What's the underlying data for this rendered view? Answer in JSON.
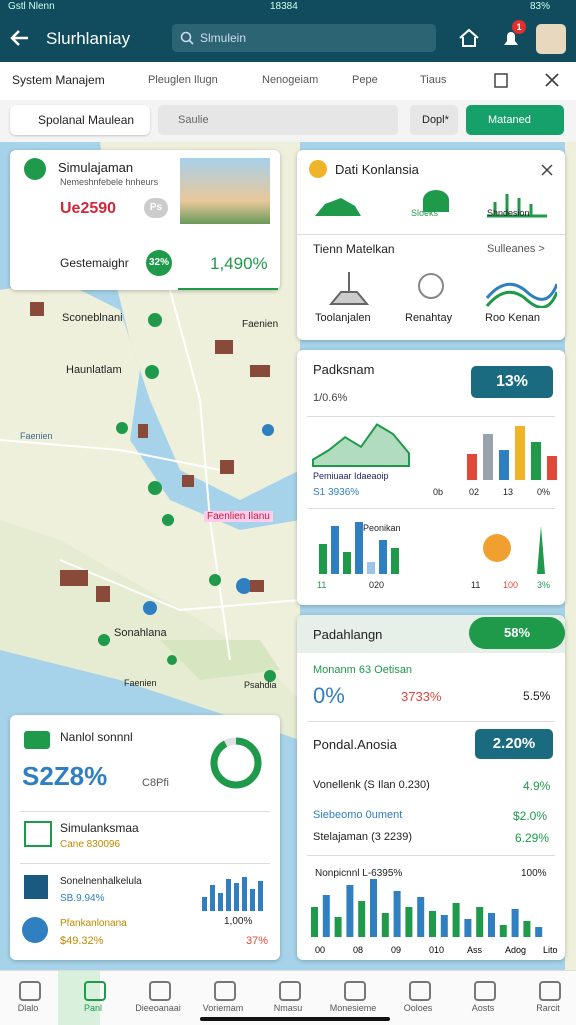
{
  "status_bar": {
    "carrier": "Gstl Nlenn",
    "time": "18384",
    "battery": "83%"
  },
  "app_bar": {
    "title": "Slurhlaniay",
    "search": "Slmulein",
    "notification_count": "1"
  },
  "tabs": [
    "System Manajem",
    "Pleuglen Ilugn",
    "Nenogeiam",
    "Pepe",
    "Tiaus"
  ],
  "toolbar": {
    "filter": "Spolanal Maulean",
    "search": "Saulie",
    "dropdown": "Dopl*",
    "action": "Mataned"
  },
  "map_labels": [
    "Sconeblnani",
    "Haunlatlam",
    "Faenien",
    "Faenien",
    "Faenlien Ilanu",
    "Sonahlana",
    "Faenien",
    "Psahdia"
  ],
  "card_overview": {
    "title": "Simulajaman",
    "subtitle": "Nemeshnfebele hnheurs",
    "amount": "Ue2590",
    "badge": "Ps",
    "item": "Gestemaighr",
    "item_badge": "32%",
    "value": "1,490%"
  },
  "card_data": {
    "title": "Dati Konlansia",
    "icons": [
      "Sloeks",
      "Shndesion"
    ],
    "section": "Tienn Matelkan",
    "more": "Sulleanes >",
    "items": [
      "Toolanjalen",
      "Renahtay",
      "Roo Kenan"
    ]
  },
  "card_stats": {
    "title": "Padksnam",
    "subtitle": "1/0.6%",
    "badge": "13%",
    "area_a": [
      4,
      10,
      18,
      12,
      26,
      20,
      8
    ],
    "area_color": "#1f9a4a",
    "chart_a_label": "Pemiuaar Idaeaoip",
    "chart_a_value": "S1 3936%",
    "bars_a": [
      26,
      46,
      30,
      54,
      38,
      24
    ],
    "bars_a_colors": [
      "#e0483a",
      "#9aa3ad",
      "#2f7fc1",
      "#f0b429",
      "#1f9a4a",
      "#e0483a"
    ],
    "axis_a": [
      "0b",
      "02",
      "13",
      "0%"
    ],
    "chart_b_label": "Peonikan",
    "bars_b": [
      30,
      48,
      22,
      52,
      12,
      34,
      26
    ],
    "bars_b_colors": [
      "#1f9a4a",
      "#2f7fc1",
      "#1f9a4a",
      "#2f7fc1",
      "#9bc4e6",
      "#2f7fc1",
      "#1f9a4a"
    ],
    "axis_b": [
      "11",
      "020",
      "11",
      "100",
      "3%"
    ]
  },
  "card_summary": {
    "title": "Padahlangn",
    "badge": "58%",
    "row_label": "Monanm 63 Oetisan",
    "metric_1": "0%",
    "metric_2": "3733%",
    "metric_3": "5.5%",
    "subtitle": "Pondal.Anosia",
    "subtitle_badge": "2.20%",
    "rows": [
      {
        "label": "Vonellenk (S Ilan 0.230)",
        "value": "4.9%"
      },
      {
        "label": "Siebeomo 0ument",
        "value": "$2.0%"
      },
      {
        "label": "Stelajaman (3 2239)",
        "value": "6.29%"
      }
    ],
    "chart_label": "Nonpicnnl L-6395%",
    "chart_max": "100%",
    "bars": [
      30,
      42,
      20,
      52,
      36,
      58,
      24,
      46,
      30,
      40,
      26,
      22,
      34,
      18,
      30,
      24,
      12,
      28,
      16,
      10
    ],
    "bar_colors": [
      "#1f9a4a",
      "#2f7fc1"
    ],
    "axis": [
      "00",
      "08",
      "09",
      "010",
      "Ass",
      "Adog",
      "Lito"
    ]
  },
  "card_balance": {
    "title": "Nanlol sonnnl",
    "amount": "S2Z8%",
    "tag": "C8Pfi",
    "donut": 92,
    "donut_color": "#1f9a4a",
    "rows": [
      {
        "title": "Simulanksmaa",
        "value": "Cane 830096"
      },
      {
        "title": "Sonelnenhalkelula",
        "value": "SB.9.94%"
      },
      {
        "title": "Pfankanlonana",
        "value": "$49.32%"
      }
    ],
    "side_value": "1,00%",
    "side_percent": "37%",
    "bars": [
      14,
      26,
      18,
      32,
      28,
      34,
      22,
      30
    ],
    "bar_color": "#2f7fc1"
  },
  "nav": [
    "Dlalo",
    "Panl",
    "Dieeoanaai",
    "Voriemam",
    "Nmasu",
    "Monesieme",
    "Ooloes",
    "Aosts",
    "Rarcit"
  ]
}
